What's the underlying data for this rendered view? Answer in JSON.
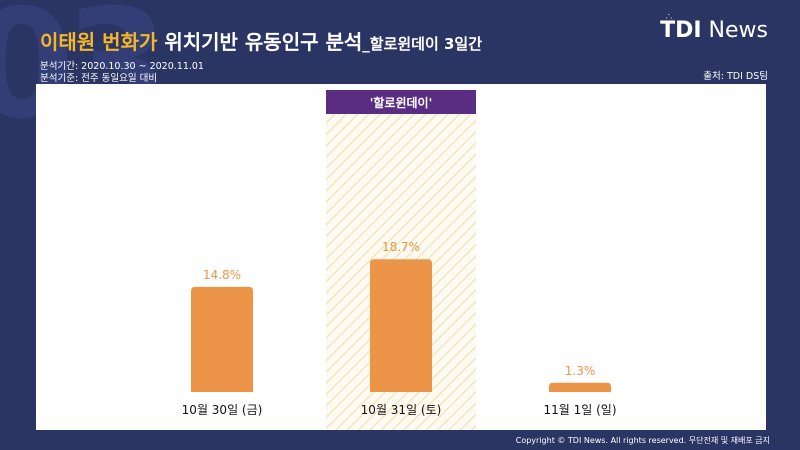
{
  "header": {
    "bg_number": "03",
    "title_highlight": "이태원 번화가",
    "title_main": " 위치기반 유동인구 분석",
    "title_sub": "_할로윈데이 3일간",
    "period": "분석기간: 2020.10.30 ~ 2020.11.01",
    "basis": "분석기준: 전주 동일요일 대비",
    "source": "출처: TDI DS팀",
    "logo_tdi": "TDI",
    "logo_news": "News"
  },
  "footer": {
    "copyright": "Copyright © TDI News. All rights reserved. 무단전재 및 재배포 금지"
  },
  "colors": {
    "bar": "#ec9447",
    "highlight_label_bg": "#5b2d82",
    "hatch": "#f4edd0",
    "background": "#2b3564"
  },
  "chart_data": {
    "type": "bar",
    "categories": [
      "10월 30일 (금)",
      "10월 31일 (토)",
      "11월 1일 (일)"
    ],
    "values": [
      14.8,
      18.7,
      1.3
    ],
    "value_labels": [
      "14.8%",
      "18.7%",
      "1.3%"
    ],
    "highlight_index": 1,
    "highlight_label": "'할로윈데이'",
    "ylim": [
      0,
      20
    ],
    "grid": false,
    "legend": "none"
  }
}
